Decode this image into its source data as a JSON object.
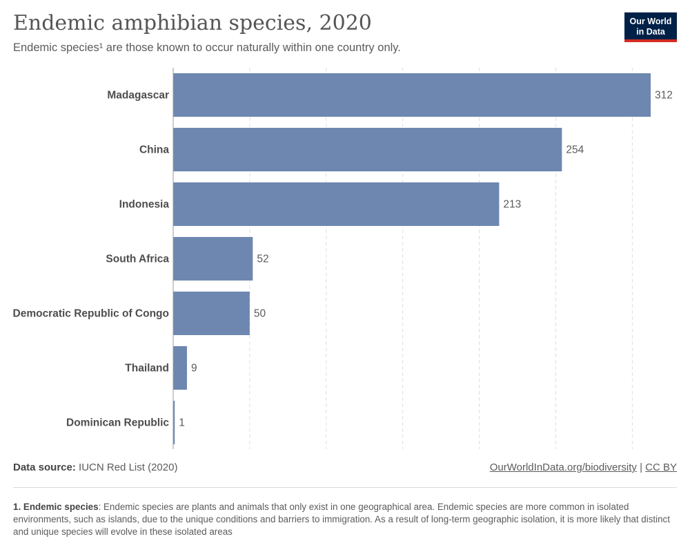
{
  "header": {
    "title": "Endemic amphibian species, 2020",
    "subtitle": "Endemic species¹ are those known to occur naturally within one country only.",
    "logo_line1": "Our World",
    "logo_line2": "in Data"
  },
  "footer": {
    "source_label": "Data source:",
    "source_text": "IUCN Red List (2020)",
    "url": "OurWorldInData.org/biodiversity",
    "separator": "|",
    "license": "CC BY",
    "footnote_term": "1. Endemic species",
    "footnote_text": ": Endemic species are plants and animals that only exist in one geographical area. Endemic species are more common in isolated environments, such as islands, due to the unique conditions and barriers to immigration. As a result of long-term geographic isolation, it is more likely that distinct and unique species will evolve in these isolated areas"
  },
  "chart_data": {
    "type": "bar",
    "orientation": "horizontal",
    "categories": [
      "Madagascar",
      "China",
      "Indonesia",
      "South Africa",
      "Democratic Republic of Congo",
      "Thailand",
      "Dominican Republic"
    ],
    "values": [
      312,
      254,
      213,
      52,
      50,
      9,
      1
    ],
    "xlim": [
      0,
      312
    ],
    "grid_ticks": [
      0,
      50,
      100,
      150,
      200,
      250,
      300
    ],
    "grid": true,
    "bar_color": "#6d87b0",
    "data_labels": true
  }
}
